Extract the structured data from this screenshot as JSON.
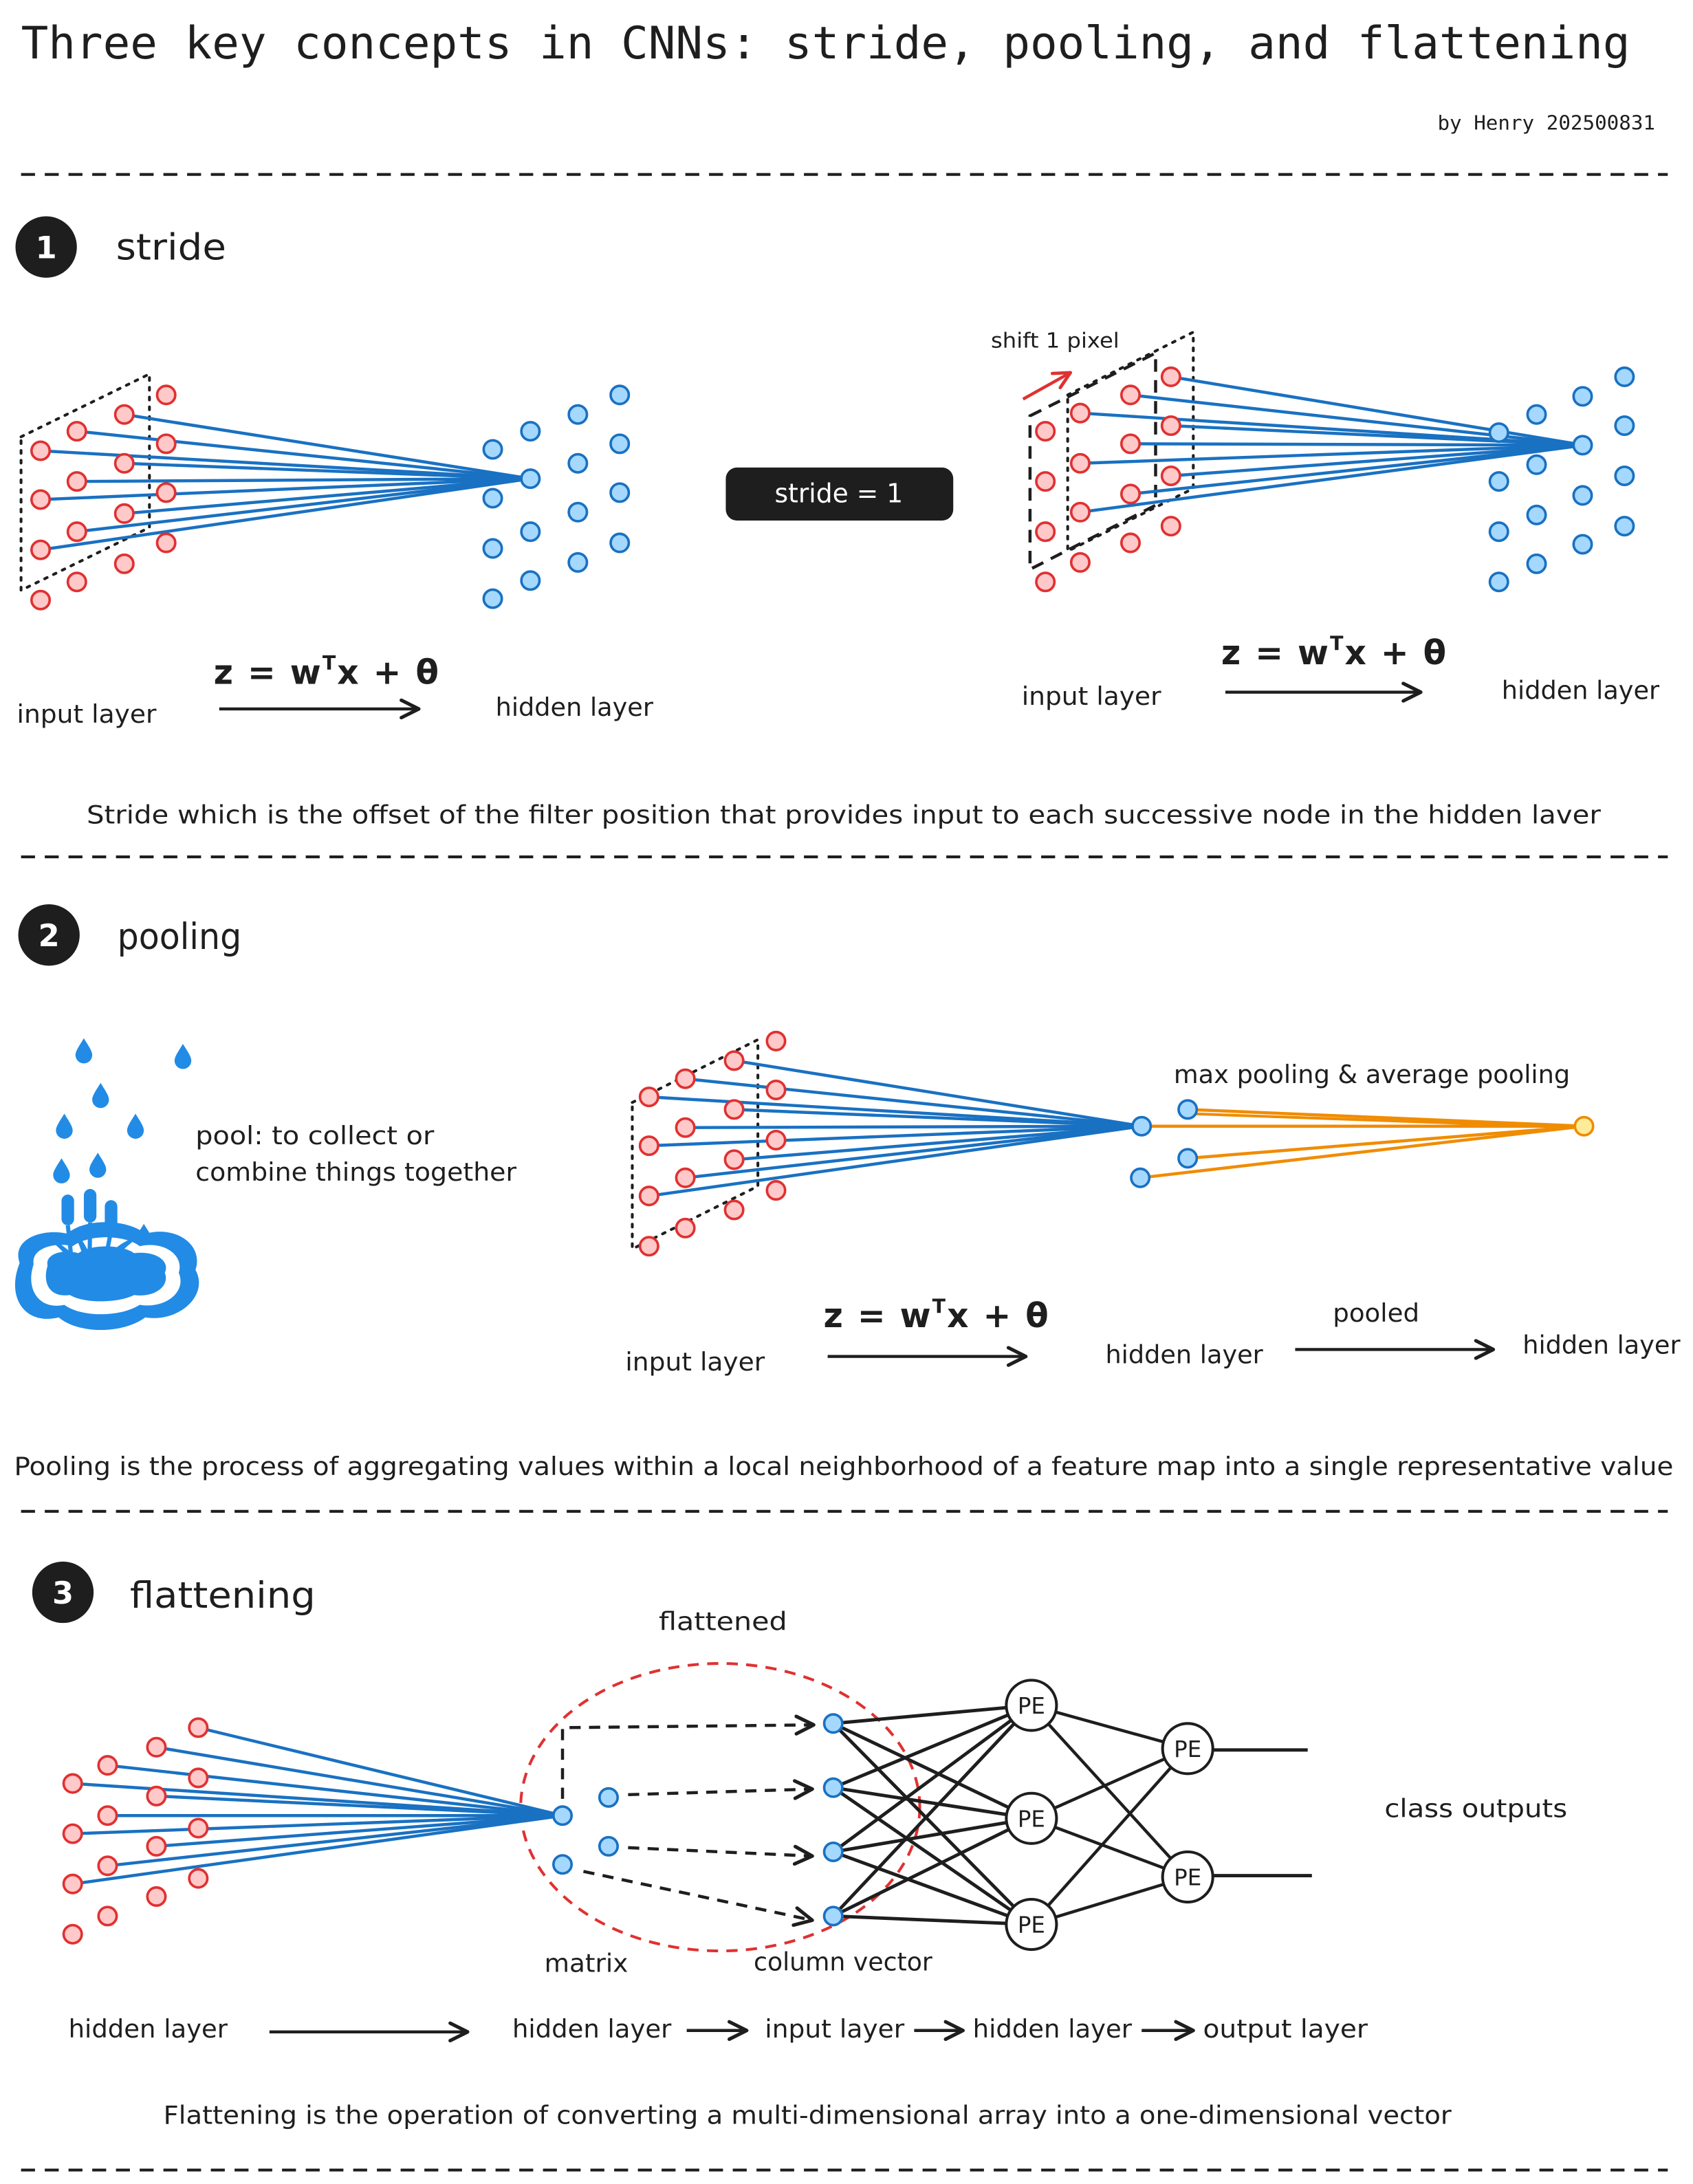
{
  "title": "Three key concepts in CNNs: stride, pooling, and flattening",
  "byline": "by Henry 202500831",
  "colors": {
    "ink": "#1e1e1e",
    "input_node_fill": "#ffc9c9",
    "input_node_stroke": "#e03131",
    "hidden_node_fill": "#a5d8ff",
    "hidden_node_stroke": "#1971c2",
    "connection": "#1971c2",
    "pool_connection": "#f08c00",
    "pooled_node_fill": "#ffec99",
    "flatten_outline": "#e03131",
    "water": "#228be6"
  },
  "icons": {
    "pond": "pond-with-cattails-icon",
    "drop": "water-drop-icon"
  },
  "stride": {
    "number": "1",
    "heading": "stride",
    "shift_label": "shift 1 pixel",
    "badge": "stride = 1",
    "equation": {
      "lhs": "z = w",
      "sup": "T",
      "rhs": "x + θ"
    },
    "left": {
      "input_label": "input layer",
      "hidden_label": "hidden layer"
    },
    "right": {
      "input_label": "input layer",
      "hidden_label": "hidden layer"
    },
    "caption": "Stride which is the offset of the filter position that provides input to each successive node in the hidden laver"
  },
  "pooling": {
    "number": "2",
    "heading": "pooling",
    "definition": [
      "pool: to collect or",
      "combine things together"
    ],
    "pool_types": "max pooling & average pooling",
    "equation": {
      "lhs": "z = w",
      "sup": "T",
      "rhs": "x + θ"
    },
    "input_label": "input layer",
    "hidden_label": "hidden layer",
    "pooled_label": "pooled",
    "pooled_hidden_label": "hidden layer",
    "caption": "Pooling is the process of aggregating values within a local neighborhood of a feature map into a single representative value"
  },
  "flattening": {
    "number": "3",
    "heading": "flattening",
    "flattened_label": "flattened",
    "matrix_label": "matrix",
    "column_vector_label": "column vector",
    "pe_labels": [
      "PE",
      "PE",
      "PE",
      "PE",
      "PE"
    ],
    "outputs_label": "class outputs",
    "flow": [
      "hidden layer",
      "hidden layer",
      "input layer",
      "hidden layer",
      "output layer"
    ],
    "caption": "Flattening is the operation of converting a multi-dimensional array into a one-dimensional vector"
  }
}
